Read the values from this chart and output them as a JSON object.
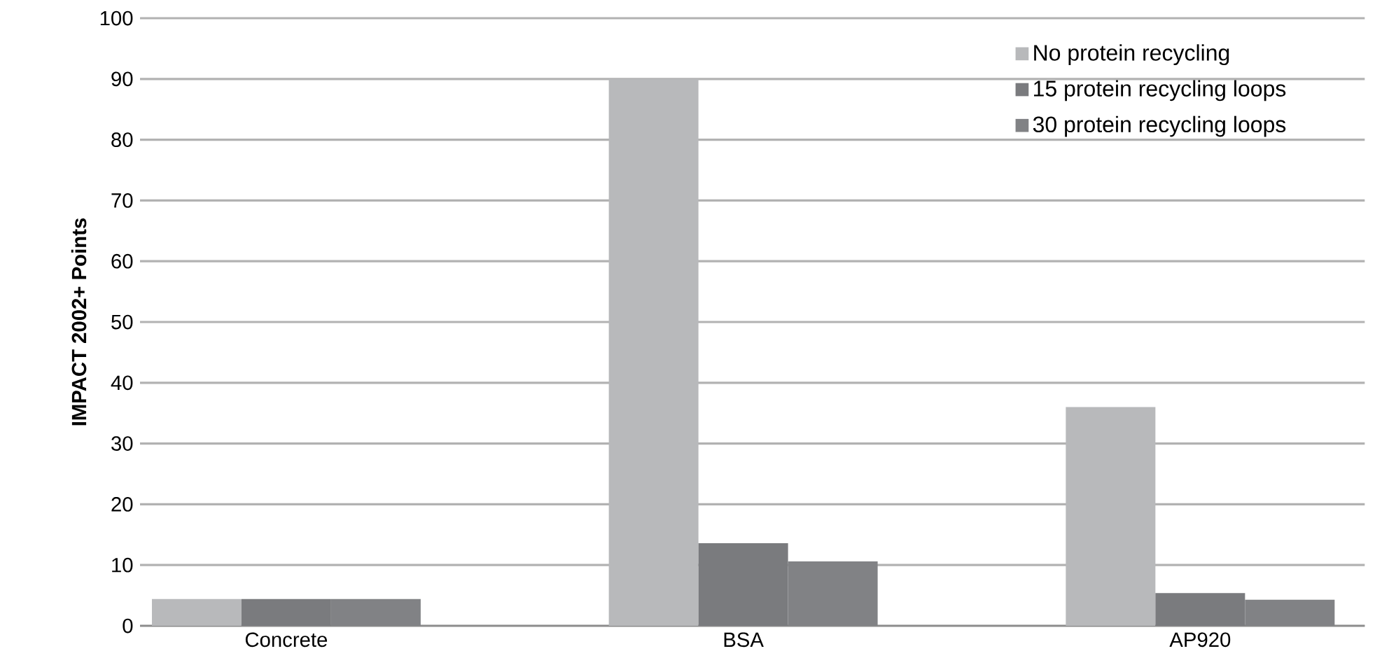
{
  "chart_data": {
    "type": "bar",
    "ylabel": "IMPACT 2002+ Points",
    "categories": [
      "Concrete",
      "BSA",
      "AP920"
    ],
    "series": [
      {
        "name": "No protein recycling",
        "color": "#b8b9bb",
        "values": [
          4.4,
          90,
          36
        ]
      },
      {
        "name": "15 protein recycling loops",
        "color": "#7a7b7e",
        "values": [
          4.4,
          13.6,
          5.4
        ]
      },
      {
        "name": "30 protein recycling loops",
        "color": "#818285",
        "values": [
          4.4,
          10.6,
          4.3
        ]
      }
    ],
    "ylim": [
      0,
      100
    ],
    "yticks": [
      0,
      10,
      20,
      30,
      40,
      50,
      60,
      70,
      80,
      90,
      100
    ],
    "grid": "y",
    "legend": "top right"
  }
}
